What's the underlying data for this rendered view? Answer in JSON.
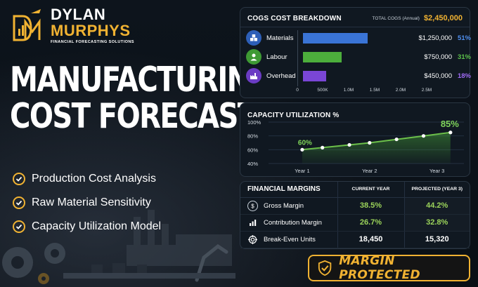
{
  "brand": {
    "line1": "DYLAN",
    "line2": "MURPHYS",
    "tagline": "FINANCIAL FORECASTING SOLUTIONS",
    "accent": "#f0b232"
  },
  "headline": {
    "line1": "MANUFACTURING",
    "line2": "COST FORECAST"
  },
  "bullets": [
    {
      "label": "Production Cost Analysis",
      "icon": "check-circle-icon"
    },
    {
      "label": "Raw Material Sensitivity",
      "icon": "check-circle-icon"
    },
    {
      "label": "Capacity Utilization Model",
      "icon": "check-circle-icon"
    }
  ],
  "cogs": {
    "title": "COGS COST BREAKDOWN",
    "total_label": "TOTAL COGS (Annual)",
    "total_value": "$2,450,000",
    "x_ticks": [
      "0",
      "500K",
      "1.0M",
      "1.5M",
      "2.0M",
      "2.5M"
    ],
    "rows": [
      {
        "label": "Materials",
        "value": "$1,250,000",
        "pct": "51%",
        "amount": 1250000,
        "color": "#3a74d6",
        "icon": "cubes-icon"
      },
      {
        "label": "Labour",
        "value": "$750,000",
        "pct": "31%",
        "amount": 750000,
        "color": "#4cae3c",
        "icon": "worker-icon"
      },
      {
        "label": "Overhead",
        "value": "$450,000",
        "pct": "18%",
        "amount": 450000,
        "color": "#7a46d6",
        "icon": "factory-icon"
      }
    ]
  },
  "capacity": {
    "title": "CAPACITY UTILIZATION %",
    "y_ticks": [
      "100%",
      "80%",
      "60%",
      "40%"
    ],
    "x_ticks": [
      "Year 1",
      "Year 2",
      "Year 3"
    ],
    "start_label": "60%",
    "end_label": "85%",
    "line_color": "#6cc04a"
  },
  "chart_data": {
    "type": "line",
    "x": [
      1.0,
      1.3,
      1.7,
      2.0,
      2.4,
      2.8,
      3.2
    ],
    "values": [
      60,
      63,
      67,
      70,
      75,
      80,
      85
    ],
    "x_tick_labels": [
      "Year 1",
      "Year 2",
      "Year 3"
    ],
    "ylim": [
      40,
      100
    ],
    "y_tick_labels": [
      "40%",
      "60%",
      "80%",
      "100%"
    ],
    "title": "CAPACITY UTILIZATION %",
    "annotations": [
      "60%",
      "85%"
    ]
  },
  "margins": {
    "title": "FINANCIAL MARGINS",
    "col_current": "CURRENT YEAR",
    "col_projected": "PROJECTED (YEAR 3)",
    "rows": [
      {
        "label": "Gross Margin",
        "current": "38.5%",
        "projected": "44.2%",
        "icon": "dollar-icon"
      },
      {
        "label": "Contribution Margin",
        "current": "26.7%",
        "projected": "32.8%",
        "icon": "bar-chart-icon"
      },
      {
        "label": "Break-Even Units",
        "current": "18,450",
        "projected": "15,320",
        "icon": "target-icon"
      }
    ]
  },
  "badge": {
    "label": "MARGIN PROTECTED",
    "icon": "shield-check-icon"
  }
}
